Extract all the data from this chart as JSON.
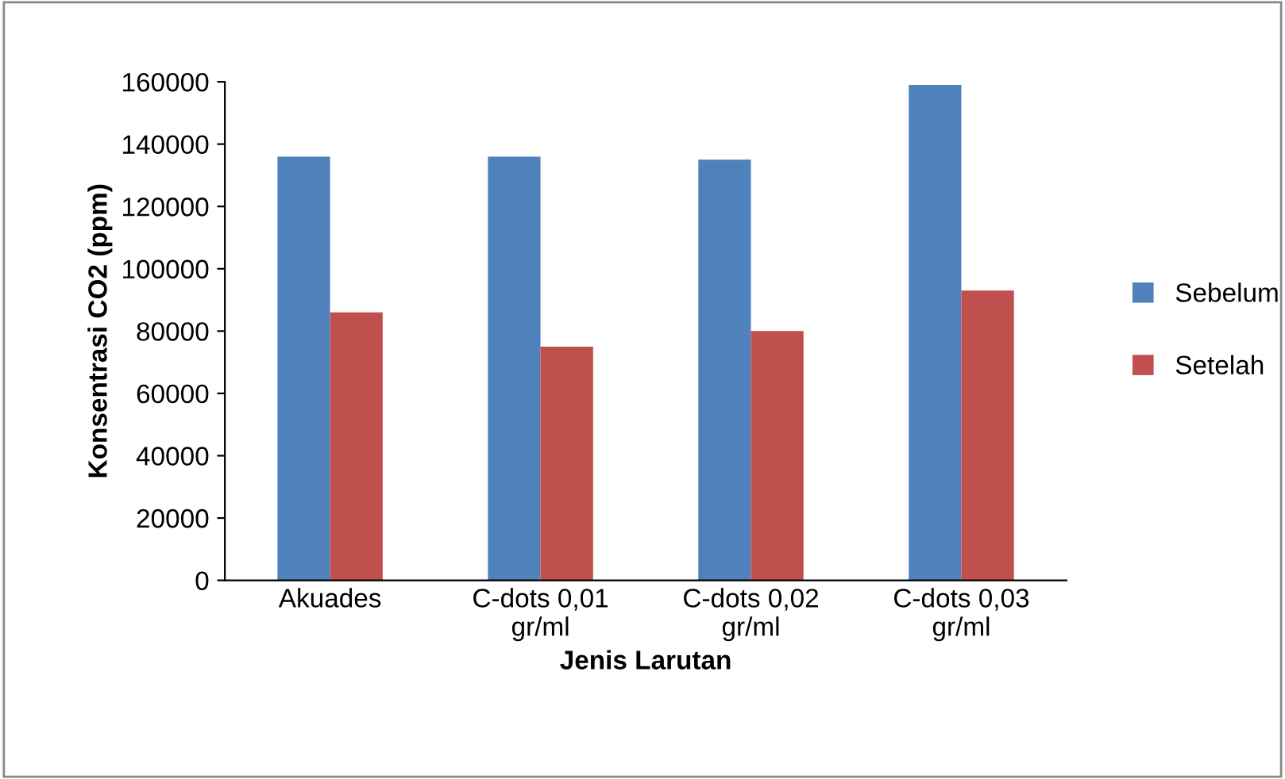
{
  "chart_data": {
    "type": "bar",
    "categories": [
      "Akuades",
      "C-dots 0,01\ngr/ml",
      "C-dots 0,02\ngr/ml",
      "C-dots 0,03\ngr/ml"
    ],
    "series": [
      {
        "name": "Sebelum",
        "color": "#4f81bd",
        "values": [
          136000,
          136000,
          135000,
          159000
        ]
      },
      {
        "name": "Setelah",
        "color": "#c0504d",
        "values": [
          86000,
          75000,
          80000,
          93000
        ]
      }
    ],
    "xlabel": "Jenis Larutan",
    "ylabel": "Konsentrasi CO2 (ppm)",
    "ylim": [
      0,
      160000
    ],
    "yticks": [
      0,
      20000,
      40000,
      60000,
      80000,
      100000,
      120000,
      140000,
      160000
    ],
    "grid": false,
    "legend": "right"
  }
}
